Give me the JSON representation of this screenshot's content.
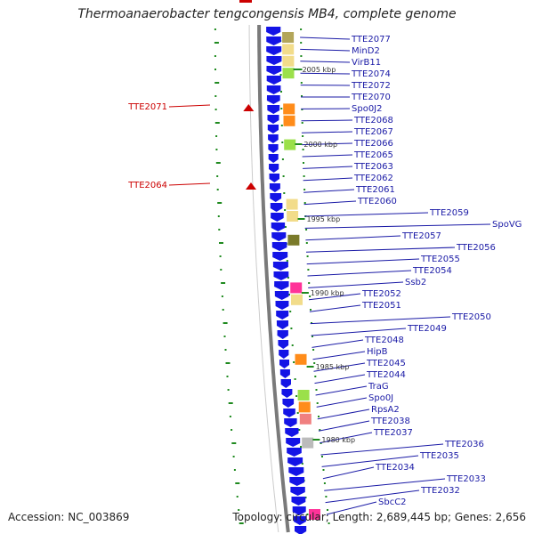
{
  "title": "Thermoanaerobacter tengcongensis MB4, complete genome",
  "footer": {
    "accession": "Accession: NC_003869",
    "summary": "Topology: circular; Length: 2,689,445 bp; Genes: 2,656"
  },
  "colors": {
    "backbone": "#7a7a7a",
    "strand": "#1414e6",
    "label": "#1a1aa6",
    "marker": "#cc0000",
    "gc_dot": "#1f8a1f"
  },
  "markers": [
    {
      "label": "TTE2071"
    },
    {
      "label": "TTE2064"
    }
  ],
  "scale_ticks": [
    "2005 kbp",
    "2000 kbp",
    "1995 kbp",
    "1990 kbp",
    "1985 kbp",
    "1980 kbp"
  ],
  "genes": [
    {
      "label": "TTE2077",
      "color": "#b3a65a"
    },
    {
      "label": "MinD2",
      "color": "#f2dc8a"
    },
    {
      "label": "VirB11",
      "color": "#f2dc8a"
    },
    {
      "label": "TTE2074",
      "color": "#9be04a"
    },
    {
      "label": "TTE2072",
      "color": ""
    },
    {
      "label": "TTE2070",
      "color": ""
    },
    {
      "label": "Spo0J2",
      "color": "#ff8c1a"
    },
    {
      "label": "TTE2068",
      "color": "#ff8c1a"
    },
    {
      "label": "TTE2067",
      "color": ""
    },
    {
      "label": "TTE2066",
      "color": "#9be04a"
    },
    {
      "label": "TTE2065",
      "color": ""
    },
    {
      "label": "TTE2063",
      "color": ""
    },
    {
      "label": "TTE2062",
      "color": ""
    },
    {
      "label": "TTE2061",
      "color": ""
    },
    {
      "label": "TTE2060",
      "color": "#f2dc8a"
    },
    {
      "label": "TTE2059",
      "color": "#f2dc8a"
    },
    {
      "label": "SpoVG",
      "color": ""
    },
    {
      "label": "TTE2057",
      "color": "#7a7a2a"
    },
    {
      "label": "TTE2056",
      "color": ""
    },
    {
      "label": "TTE2055",
      "color": ""
    },
    {
      "label": "TTE2054",
      "color": ""
    },
    {
      "label": "Ssb2",
      "color": "#ff3399"
    },
    {
      "label": "TTE2052",
      "color": "#f2dc8a"
    },
    {
      "label": "TTE2051",
      "color": ""
    },
    {
      "label": "TTE2050",
      "color": ""
    },
    {
      "label": "TTE2049",
      "color": ""
    },
    {
      "label": "TTE2048",
      "color": ""
    },
    {
      "label": "HipB",
      "color": "#ff8c1a"
    },
    {
      "label": "TTE2045",
      "color": ""
    },
    {
      "label": "TTE2044",
      "color": ""
    },
    {
      "label": "TraG",
      "color": "#9be04a"
    },
    {
      "label": "Spo0J",
      "color": "#ff8c1a"
    },
    {
      "label": "RpsA2",
      "color": "#f08080"
    },
    {
      "label": "TTE2038",
      "color": ""
    },
    {
      "label": "TTE2037",
      "color": "#bbbbbb"
    },
    {
      "label": "TTE2036",
      "color": ""
    },
    {
      "label": "TTE2035",
      "color": ""
    },
    {
      "label": "TTE2034",
      "color": ""
    },
    {
      "label": "TTE2033",
      "color": ""
    },
    {
      "label": "TTE2032",
      "color": ""
    },
    {
      "label": "SbcC2",
      "color": "#ff3399"
    }
  ]
}
